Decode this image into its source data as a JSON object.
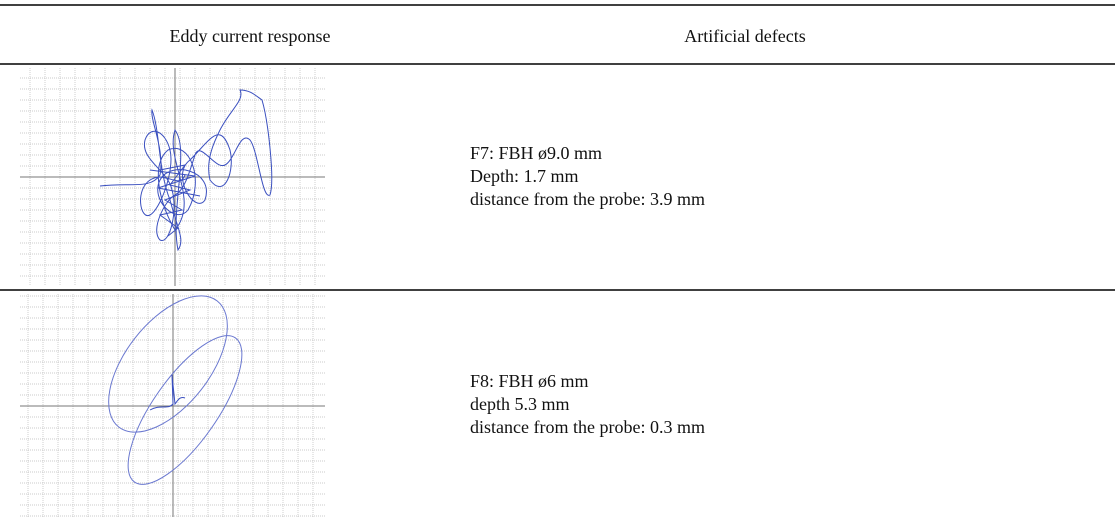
{
  "header": {
    "columns": [
      "Eddy current response",
      "Artificial defects"
    ]
  },
  "table": {
    "rows": [
      {
        "lines": [
          "F7: FBH ø9.0 mm",
          "Depth: 1.7 mm",
          "distance from the probe: 3.9 mm"
        ]
      },
      {
        "lines": [
          "F8: FBH ø6 mm",
          "depth 5.3 mm",
          "distance from the probe: 0.3 mm"
        ]
      }
    ]
  }
}
